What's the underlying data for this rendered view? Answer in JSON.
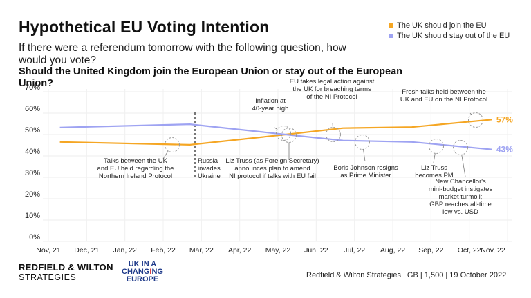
{
  "header": {
    "title": "Hypothetical EU Voting Intention",
    "subtitle": "If there were a referendum tomorrow with the following question, how would you vote?",
    "question": "Should the United Kingdom join the European Union or stay out of the European Union?"
  },
  "legend": [
    {
      "label": "The UK should join the EU",
      "color": "#f5a623"
    },
    {
      "label": "The UK should stay out of the EU",
      "color": "#9ea3f2"
    }
  ],
  "chart_data": {
    "type": "line",
    "title": "Hypothetical EU Voting Intention",
    "xlabel": "",
    "ylabel": "",
    "x_ticks": [
      "Nov, 21",
      "Dec, 21",
      "Jan, 22",
      "Feb, 22",
      "Mar, 22",
      "Apr, 22",
      "May, 22",
      "Jun, 22",
      "Jul, 22",
      "Aug, 22",
      "Sep, 22",
      "Oct, 22",
      "Nov, 22"
    ],
    "y_ticks": [
      "0%",
      "10%",
      "20%",
      "30%",
      "40%",
      "50%",
      "60%",
      "70%"
    ],
    "ylim": [
      0,
      70
    ],
    "x_range_months": [
      0,
      12
    ],
    "grid": true,
    "legend_position": "top-right",
    "series": [
      {
        "name": "The UK should join the EU",
        "color": "#f5a623",
        "x": [
          0.3,
          3.7,
          6.2,
          7.7,
          9.5,
          11.6
        ],
        "values": [
          46.5,
          45.2,
          50.0,
          53.0,
          53.5,
          57.0
        ],
        "end_label": "57%"
      },
      {
        "name": "The UK should stay out of the EU",
        "color": "#9ea3f2",
        "x": [
          0.3,
          3.7,
          6.2,
          7.7,
          9.5,
          11.6
        ],
        "values": [
          53.3,
          54.8,
          50.0,
          47.2,
          46.5,
          43.0
        ],
        "end_label": "43%"
      }
    ],
    "event_line": {
      "x": 3.9,
      "label": "Russia invades Ukraine"
    },
    "annotations": [
      {
        "text": [
          "Talks between the UK",
          "and EU held regarding the",
          "Northern Ireland Protocol"
        ],
        "x": 3.4,
        "y": 45.5
      },
      {
        "text": [
          "Inflation at",
          "40-year high"
        ],
        "x": 6.05,
        "y": 50.5
      },
      {
        "text": [
          "Liz Truss (as Foreign Secretary)",
          "announces plan to amend",
          "NI protocol if talks with EU fail"
        ],
        "x": 6.35,
        "y": 50.3
      },
      {
        "text": [
          "EU takes legal action against",
          "the UK for breaching terms",
          "of the NI Protocol"
        ],
        "x": 7.6,
        "y": 50.5
      },
      {
        "text": [
          "Boris Johnson resigns",
          "as Prime Minister"
        ],
        "x": 8.6,
        "y": 46.5
      },
      {
        "text": [
          "Fresh talks held between the",
          "UK and EU on the NI Protocol"
        ],
        "x": 11.4,
        "y": 56.5
      },
      {
        "text": [
          "Liz Truss",
          "becomes PM"
        ],
        "x": 10.35,
        "y": 45.0
      },
      {
        "text": [
          "New Chancellor's",
          "mini-budget instigates",
          "market turmoil;",
          "GBP reaches all-time",
          "low vs. USD"
        ],
        "x": 11.0,
        "y": 44.5
      }
    ]
  },
  "footer": {
    "brand_line1": "REDFIELD & WILTON",
    "brand_line2": "STRATEGIES",
    "partner_line1": "UK IN A",
    "partner_line2_a": "CHANG",
    "partner_line2_b": "I",
    "partner_line2_c": "NG",
    "partner_line3": "EUROPE",
    "source": "Redfield & Wilton Strategies | GB | 1,500 | 19 October 2022"
  }
}
